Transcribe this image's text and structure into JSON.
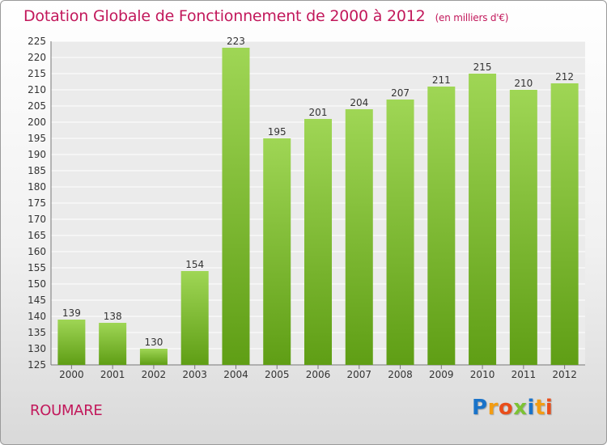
{
  "chart_data": {
    "type": "bar",
    "title": "Dotation Globale de Fonctionnement de 2000 à 2012",
    "unit": "(en milliers d'€)",
    "categories": [
      "2000",
      "2001",
      "2002",
      "2003",
      "2004",
      "2005",
      "2006",
      "2007",
      "2008",
      "2009",
      "2010",
      "2011",
      "2012"
    ],
    "values": [
      139,
      138,
      130,
      154,
      223,
      195,
      201,
      204,
      207,
      211,
      215,
      210,
      212
    ],
    "ylim": [
      125,
      225
    ],
    "yticks": [
      125,
      130,
      135,
      140,
      145,
      150,
      155,
      160,
      165,
      170,
      175,
      180,
      185,
      190,
      195,
      200,
      205,
      210,
      215,
      220,
      225
    ],
    "grid": true,
    "bar_color": "#7cc234",
    "xlabel": "",
    "ylabel": ""
  },
  "footer": {
    "commune": "ROUMARE",
    "logo_letters": [
      "P",
      "r",
      "o",
      "x",
      "i",
      "t",
      "i"
    ],
    "logo_colors": [
      "#1a73c9",
      "#f39c12",
      "#e94e1b",
      "#7cc234",
      "#1a73c9",
      "#f39c12",
      "#e94e1b"
    ]
  }
}
